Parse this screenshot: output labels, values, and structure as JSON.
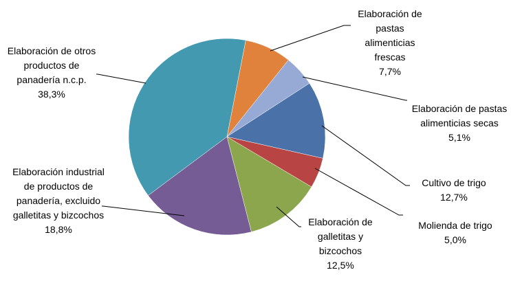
{
  "chart_data": {
    "type": "pie",
    "categories": [
      "Elaboración de pastas alimenticias frescas",
      "Elaboración de pastas alimenticias secas",
      "Cultivo de trigo",
      "Molienda de trigo",
      "Elaboración de galletitas y bizcochos",
      "Elaboración industrial de productos de panadería, excluido galletitas y bizcochos",
      "Elaboración de otros productos de panadería n.c.p."
    ],
    "values": [
      7.7,
      5.1,
      12.7,
      5.0,
      12.5,
      18.8,
      38.3
    ],
    "value_labels": [
      "7,7%",
      "5,1%",
      "12,7%",
      "5,0%",
      "12,5%",
      "18,8%",
      "38,3%"
    ],
    "colors": [
      "#e0823c",
      "#97aad6",
      "#4a72a8",
      "#b84444",
      "#8ca64d",
      "#755c94",
      "#4299b0"
    ]
  }
}
